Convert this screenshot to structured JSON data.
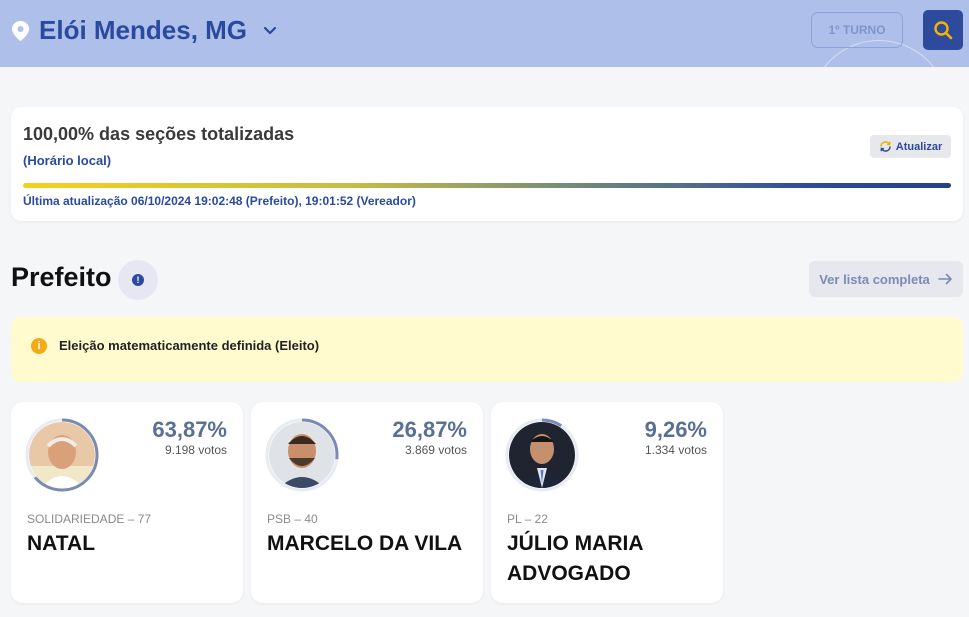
{
  "header": {
    "city": "Elói Mendes, MG",
    "turno_label": "1º TURNO",
    "icons": {
      "location": "location-pin-icon",
      "chevron": "chevron-down-icon",
      "search": "search-icon"
    }
  },
  "status": {
    "title": "100,00% das seções totalizadas",
    "subtitle": "(Horário local)",
    "refresh_label": "Atualizar",
    "progress_percent": 100,
    "last_update": "Última atualização 06/10/2024 19:02:48 (Prefeito), 19:01:52 (Vereador)"
  },
  "section": {
    "title": "Prefeito",
    "list_button_label": "Ver lista completa"
  },
  "alert": {
    "text": "Eleição matematicamente definida (Eleito)"
  },
  "candidates": [
    {
      "percent": "63,87%",
      "percent_value": 63.87,
      "votes": "9.198 votos",
      "party": "SOLIDARIEDADE – 77",
      "name": "NATAL"
    },
    {
      "percent": "26,87%",
      "percent_value": 26.87,
      "votes": "3.869 votos",
      "party": "PSB – 40",
      "name": "MARCELO DA VILA"
    },
    {
      "percent": "9,26%",
      "percent_value": 9.26,
      "votes": "1.334 votos",
      "party": "PL – 22",
      "name": "JÚLIO MARIA ADVOGADO"
    }
  ],
  "colors": {
    "header_bg": "#aebfe9",
    "accent": "#2d4a9c",
    "alert_bg": "#fffbcf",
    "alert_icon": "#f4a917"
  }
}
